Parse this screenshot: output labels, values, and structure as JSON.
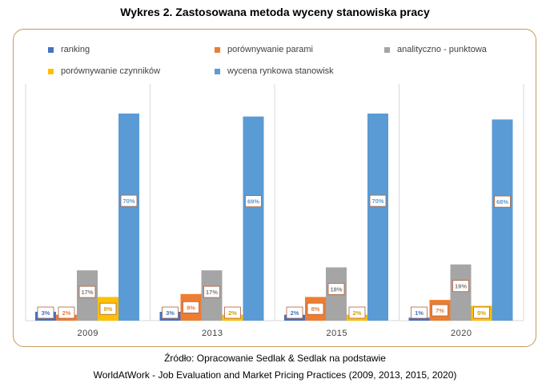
{
  "page": {
    "title": "Wykres 2. Zastosowana metoda wyceny stanowiska pracy",
    "source_line1": "Źródło: Opracowanie Sedlak & Sedlak na podstawie",
    "source_line2": "WorldAtWork - Job Evaluation and Market Pricing Practices (2009, 2013, 2015, 2020)"
  },
  "chart_data": {
    "type": "bar",
    "title": "Wykres 2. Zastosowana metoda wyceny stanowiska pracy",
    "xlabel": "",
    "ylabel": "",
    "ylim": [
      0,
      80
    ],
    "grid": false,
    "legend_position": "top",
    "categories": [
      "2009",
      "2013",
      "2015",
      "2020"
    ],
    "series": [
      {
        "name": "ranking",
        "color": "#4472c4",
        "values": [
          3,
          3,
          2,
          1
        ],
        "labels": [
          "3%",
          "3%",
          "2%",
          "1%"
        ]
      },
      {
        "name": "porównywanie parami",
        "color": "#ed7d31",
        "values": [
          2,
          9,
          8,
          7
        ],
        "labels": [
          "2%",
          "9%",
          "8%",
          "7%"
        ]
      },
      {
        "name": "analityczno - punktowa",
        "color": "#a5a5a5",
        "values": [
          17,
          17,
          18,
          19
        ],
        "labels": [
          "17%",
          "17%",
          "18%",
          "19%"
        ]
      },
      {
        "name": "porównywanie czynników",
        "color": "#ffc000",
        "values": [
          8,
          2,
          2,
          5
        ],
        "labels": [
          "8%",
          "2%",
          "2%",
          "5%"
        ]
      },
      {
        "name": "wycena rynkowa stanowisk",
        "color": "#5b9bd5",
        "values": [
          70,
          69,
          70,
          68
        ],
        "labels": [
          "70%",
          "69%",
          "70%",
          "68%"
        ]
      }
    ]
  }
}
